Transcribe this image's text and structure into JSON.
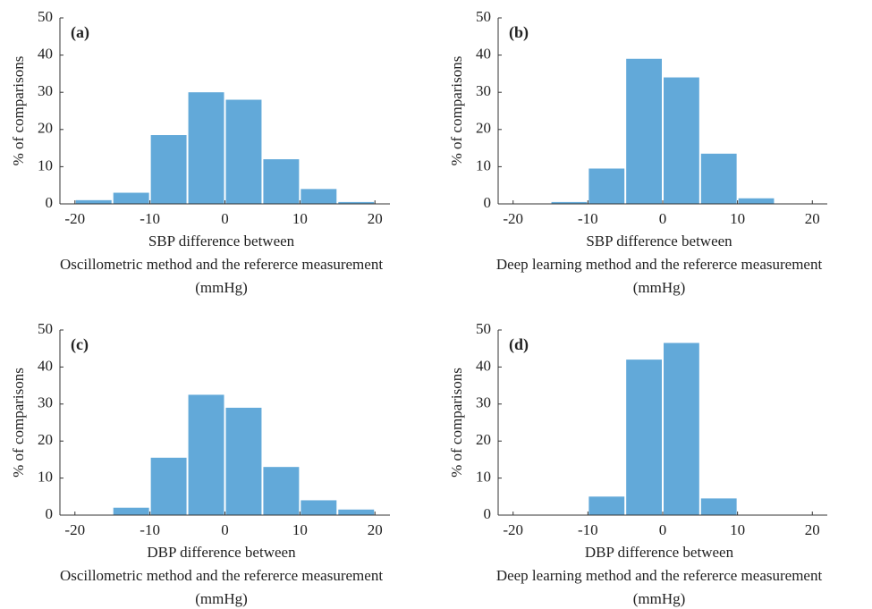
{
  "chart_data": [
    {
      "type": "histogram",
      "label": "(a)",
      "ylabel": "% of comparisons",
      "xlabel": [
        "SBP difference between",
        "Oscillometric method and the refererce measurement",
        "(mmHg)"
      ],
      "bins": [
        -20,
        -15,
        -10,
        -5,
        0,
        5,
        10,
        15,
        20
      ],
      "values": [
        1,
        3,
        18.5,
        30,
        28,
        12,
        4,
        0.5
      ],
      "color": "#62a9d9",
      "xlim": [
        -22,
        22
      ],
      "ylim": [
        0,
        50
      ],
      "xticks": [
        -20,
        -10,
        0,
        10,
        20
      ],
      "yticks": [
        0,
        10,
        20,
        30,
        40,
        50
      ]
    },
    {
      "type": "histogram",
      "label": "(b)",
      "ylabel": "% of comparisons",
      "xlabel": [
        "SBP difference between",
        "Deep learning method and the refererce measurement",
        "(mmHg)"
      ],
      "bins": [
        -20,
        -15,
        -10,
        -5,
        0,
        5,
        10,
        15,
        20
      ],
      "values": [
        0,
        0.5,
        9.5,
        39,
        34,
        13.5,
        1.5,
        0
      ],
      "color": "#62a9d9",
      "xlim": [
        -22,
        22
      ],
      "ylim": [
        0,
        50
      ],
      "xticks": [
        -20,
        -10,
        0,
        10,
        20
      ],
      "yticks": [
        0,
        10,
        20,
        30,
        40,
        50
      ]
    },
    {
      "type": "histogram",
      "label": "(c)",
      "ylabel": "% of comparisons",
      "xlabel": [
        "DBP difference between",
        "Oscillometric method and the refererce measurement",
        "(mmHg)"
      ],
      "bins": [
        -20,
        -15,
        -10,
        -5,
        0,
        5,
        10,
        15,
        20
      ],
      "values": [
        0,
        2,
        15.5,
        32.5,
        29,
        13,
        4,
        1.5
      ],
      "color": "#62a9d9",
      "xlim": [
        -22,
        22
      ],
      "ylim": [
        0,
        50
      ],
      "xticks": [
        -20,
        -10,
        0,
        10,
        20
      ],
      "yticks": [
        0,
        10,
        20,
        30,
        40,
        50
      ]
    },
    {
      "type": "histogram",
      "label": "(d)",
      "ylabel": "% of comparisons",
      "xlabel": [
        "DBP difference between",
        "Deep learning method and the refererce measurement",
        "(mmHg)"
      ],
      "bins": [
        -20,
        -15,
        -10,
        -5,
        0,
        5,
        10,
        15,
        20
      ],
      "values": [
        0,
        0,
        5,
        42,
        46.5,
        4.5,
        0,
        0
      ],
      "color": "#62a9d9",
      "xlim": [
        -22,
        22
      ],
      "ylim": [
        0,
        50
      ],
      "xticks": [
        -20,
        -10,
        0,
        10,
        20
      ],
      "yticks": [
        0,
        10,
        20,
        30,
        40,
        50
      ]
    }
  ]
}
